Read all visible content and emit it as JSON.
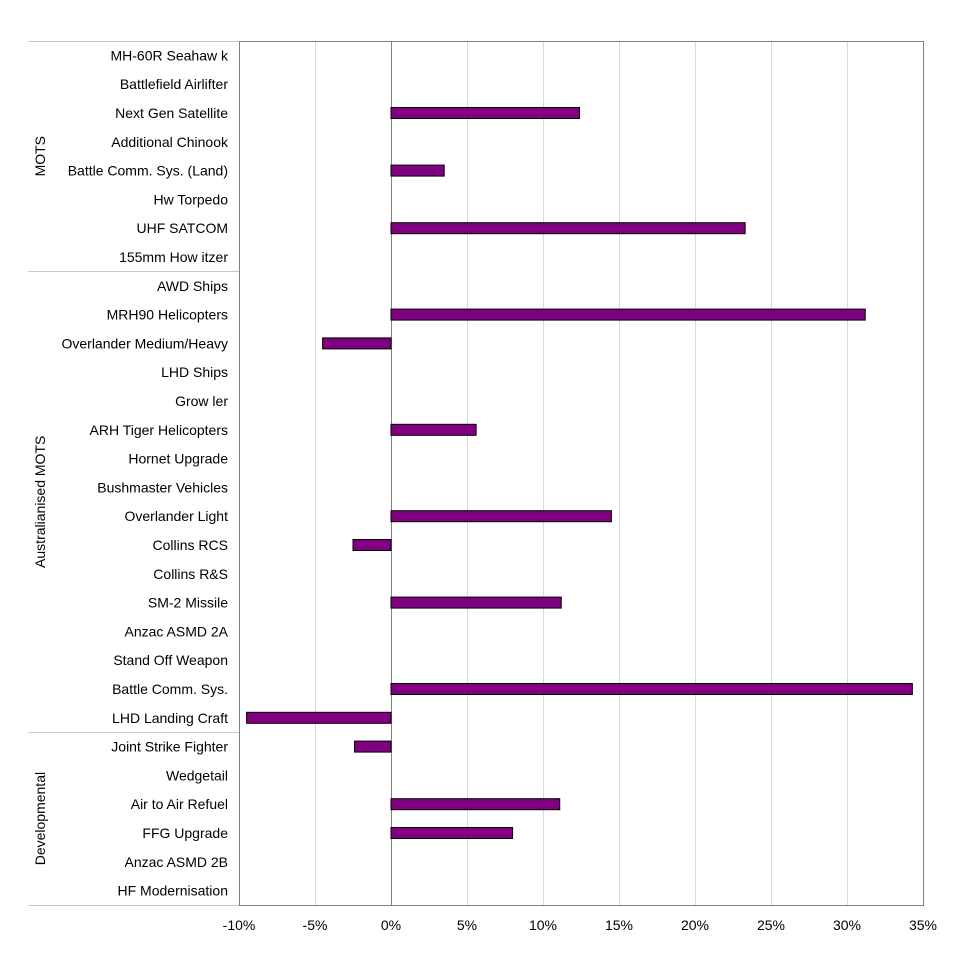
{
  "chart_data": {
    "type": "bar",
    "orientation": "horizontal",
    "categories": [
      "MH-60R Seahaw k",
      "Battlefield Airlifter",
      "Next Gen Satellite",
      "Additional Chinook",
      "Battle Comm. Sys. (Land)",
      "Hw Torpedo",
      "UHF SATCOM",
      "155mm How itzer",
      "AWD Ships",
      "MRH90 Helicopters",
      "Overlander Medium/Heavy",
      "LHD Ships",
      "Grow ler",
      "ARH Tiger Helicopters",
      "Hornet Upgrade",
      "Bushmaster Vehicles",
      "Overlander Light",
      "Collins RCS",
      "Collins R&S",
      "SM-2 Missile",
      "Anzac ASMD 2A",
      "Stand Off Weapon",
      "Battle Comm. Sys.",
      "LHD Landing Craft",
      "Joint Strike Fighter",
      "Wedgetail",
      "Air to Air Refuel",
      "FFG Upgrade",
      "Anzac ASMD 2B",
      "HF Modernisation"
    ],
    "values": [
      0,
      0,
      12.4,
      0,
      3.5,
      0,
      23.3,
      0,
      0,
      31.2,
      -4.5,
      0,
      0,
      5.6,
      0,
      0,
      14.5,
      -2.5,
      0,
      11.2,
      0,
      0,
      34.3,
      -9.5,
      -2.4,
      0,
      11.1,
      8.0,
      0,
      0
    ],
    "groups": [
      {
        "name": "MOTS",
        "start": 0,
        "end": 7
      },
      {
        "name": "Australianised MOTS",
        "start": 8,
        "end": 23
      },
      {
        "name": "Developmental",
        "start": 24,
        "end": 29
      }
    ],
    "xlim": [
      -10,
      35
    ],
    "xticks": [
      -10,
      -5,
      0,
      5,
      10,
      15,
      20,
      25,
      30,
      35
    ],
    "tick_suffix": "%",
    "grid": true,
    "colors": {
      "bar": "#800080",
      "bar_border": "#000000",
      "grid": "#d9d9d9",
      "frame": "#808080",
      "zero_line": "#808080"
    }
  }
}
